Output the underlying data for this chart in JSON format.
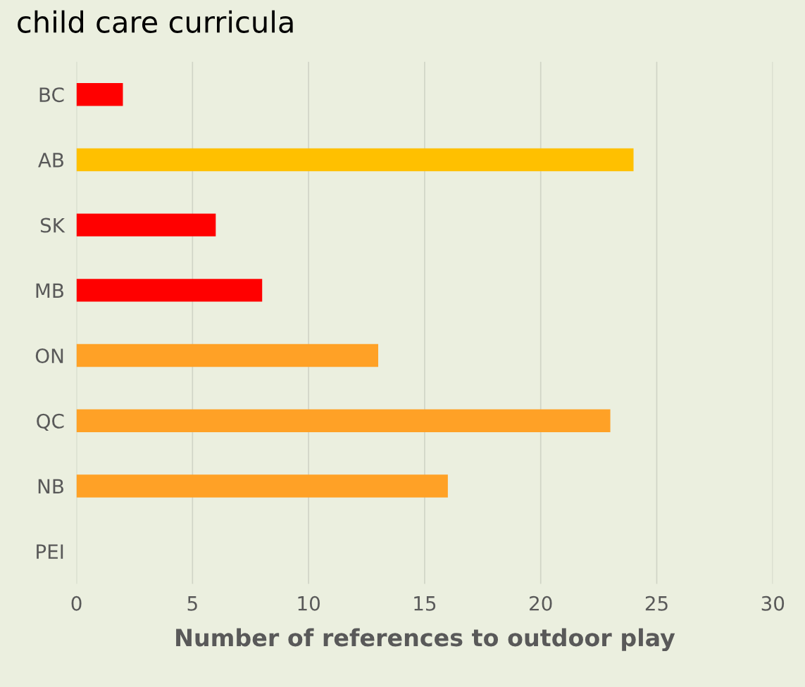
{
  "chart_data": {
    "type": "bar",
    "orientation": "horizontal",
    "title": "child care curricula",
    "xlabel": "Number of references to outdoor play",
    "categories": [
      "BC",
      "AB",
      "SK",
      "MB",
      "ON",
      "QC",
      "NB",
      "PEI"
    ],
    "values": [
      2,
      24,
      6,
      8,
      13,
      23,
      16,
      0
    ],
    "colors": [
      "#ff0000",
      "#ffc000",
      "#ff0000",
      "#ff0000",
      "#ffa126",
      "#ffa126",
      "#ffa126",
      "#ffa126"
    ],
    "xlim": [
      0,
      30
    ],
    "xticks": [
      0,
      5,
      10,
      15,
      20,
      25,
      30
    ],
    "grid": "x"
  }
}
